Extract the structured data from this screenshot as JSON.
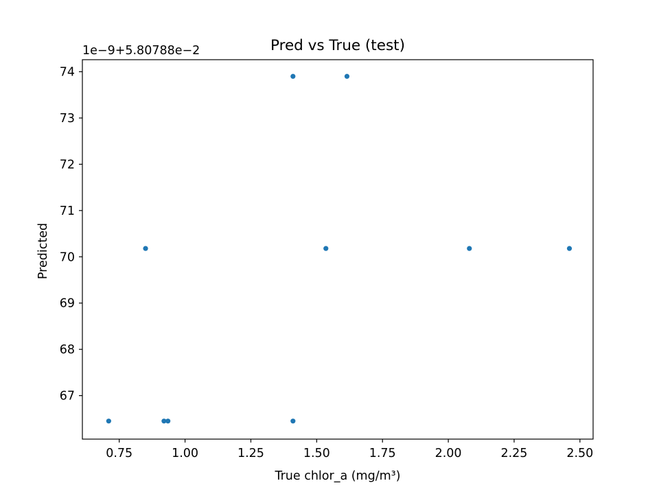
{
  "chart_data": {
    "type": "scatter",
    "title": "Pred vs True (test)",
    "xlabel": "True chlor_a (mg/m³)",
    "ylabel": "Predicted",
    "y_offset_text": "1e−9+5.80788e−2",
    "xlim": [
      0.61,
      2.55
    ],
    "ylim": [
      66.06,
      74.26
    ],
    "x_ticks": [
      0.75,
      1.0,
      1.25,
      1.5,
      1.75,
      2.0,
      2.25,
      2.5
    ],
    "x_tick_labels": [
      "0.75",
      "1.00",
      "1.25",
      "1.50",
      "1.75",
      "2.00",
      "2.25",
      "2.50"
    ],
    "y_ticks": [
      67,
      68,
      69,
      70,
      71,
      72,
      73,
      74
    ],
    "y_tick_labels": [
      "67",
      "68",
      "69",
      "70",
      "71",
      "72",
      "73",
      "74"
    ],
    "grid": false,
    "marker_color": "#1f77b4",
    "series": [
      {
        "x": [
          0.71,
          0.85,
          0.92,
          0.935,
          1.41,
          1.41,
          1.535,
          1.615,
          2.08,
          2.46
        ],
        "y": [
          66.45,
          70.18,
          66.45,
          66.45,
          73.9,
          66.45,
          70.18,
          73.9,
          70.18,
          70.18
        ]
      }
    ]
  }
}
